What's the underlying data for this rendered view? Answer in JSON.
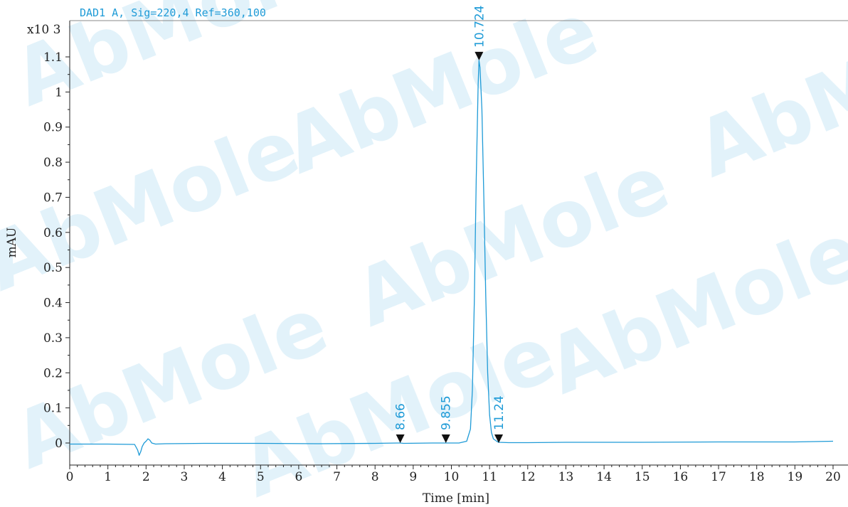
{
  "chart_data": {
    "type": "line",
    "title": "DAD1 A,  Sig=220,4 Ref=360,100",
    "xlabel": "Time [min]",
    "ylabel": "mAU",
    "y_multiplier_label": "x10 3",
    "xlim": [
      0,
      20
    ],
    "ylim": [
      -0.06,
      1.2
    ],
    "x_ticks": [
      0,
      1,
      2,
      3,
      4,
      5,
      6,
      7,
      8,
      9,
      10,
      11,
      12,
      13,
      14,
      15,
      16,
      17,
      18,
      19,
      20
    ],
    "y_ticks": [
      {
        "value": 0,
        "label": "0"
      },
      {
        "value": 0.1,
        "label": "0.1"
      },
      {
        "value": 0.2,
        "label": "0.2"
      },
      {
        "value": 0.3,
        "label": "0.3"
      },
      {
        "value": 0.4,
        "label": "0.4"
      },
      {
        "value": 0.5,
        "label": "0.5"
      },
      {
        "value": 0.6,
        "label": "0.6"
      },
      {
        "value": 0.7,
        "label": "0.7"
      },
      {
        "value": 0.8,
        "label": "0.8"
      },
      {
        "value": 0.9,
        "label": "0.9"
      },
      {
        "value": 1.0,
        "label": "1"
      },
      {
        "value": 1.1,
        "label": "1.1"
      }
    ],
    "series": [
      {
        "color": "#1f9bd7",
        "x": [
          0,
          1.0,
          1.7,
          1.78,
          1.82,
          1.86,
          1.9,
          1.95,
          2.0,
          2.05,
          2.1,
          2.15,
          2.25,
          2.5,
          3.5,
          5.0,
          6.5,
          8.0,
          8.6,
          8.66,
          8.75,
          9.5,
          9.855,
          10.2,
          10.4,
          10.5,
          10.55,
          10.6,
          10.65,
          10.7,
          10.724,
          10.75,
          10.8,
          10.85,
          10.9,
          10.95,
          11.0,
          11.05,
          11.1,
          11.2,
          11.24,
          11.5,
          12.0,
          13.0,
          15.0,
          17.0,
          18.0,
          19.0,
          20.0
        ],
        "y": [
          -0.003,
          -0.003,
          -0.004,
          -0.02,
          -0.035,
          -0.025,
          -0.01,
          0.0,
          0.005,
          0.012,
          0.008,
          0.0,
          -0.003,
          -0.002,
          -0.001,
          -0.001,
          -0.002,
          -0.001,
          0.0,
          0.0,
          -0.001,
          0.0,
          0.0,
          0.0,
          0.005,
          0.04,
          0.15,
          0.4,
          0.75,
          1.02,
          1.09,
          1.07,
          0.95,
          0.7,
          0.42,
          0.2,
          0.08,
          0.03,
          0.012,
          0.004,
          0.002,
          0.001,
          0.001,
          0.002,
          0.002,
          0.003,
          0.003,
          0.003,
          0.005
        ]
      }
    ],
    "peaks": [
      {
        "x": 8.66,
        "y": 0.0,
        "label": "8.66"
      },
      {
        "x": 9.855,
        "y": 0.0,
        "label": "9.855"
      },
      {
        "x": 10.724,
        "y": 1.09,
        "label": "10.724"
      },
      {
        "x": 11.24,
        "y": 0.0,
        "label": "11.24"
      }
    ],
    "watermark": "AbMole",
    "grid": false
  }
}
